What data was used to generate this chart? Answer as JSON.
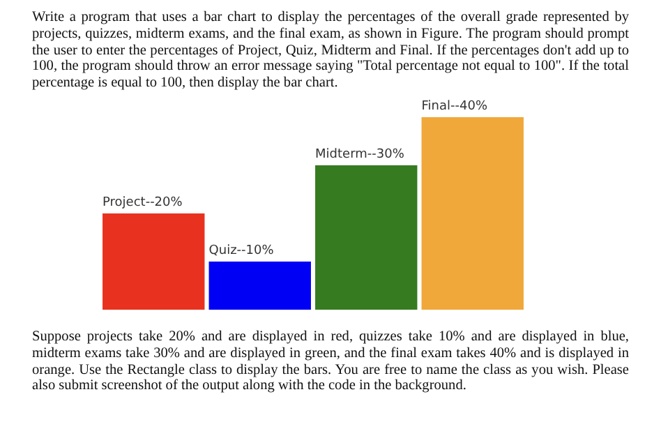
{
  "chart_data": {
    "type": "bar",
    "title": "Write a program that uses a bar chart to display the percentages of the overall grade represented by projects, quizzes, midterm exams, and the final exam, as shown in Figure. The program should prompt the user to enter the percentages of Project, Quiz, Midterm and Final. If the percentages don't add up to 100, the program should throw an error message saying \"Total percentage not equal to 100\". If the total percentage is equal to 100, then display the bar chart.",
    "annotations": [
      "Suppose projects take 20% and are displayed in red, quizzes take 10% and are displayed in blue, midterm exams take 30% and are displayed in green, and the final exam takes 40% and is displayed in orange. Use the Rectangle class to display the bars. You are free to name the class as you wish. Please also submit screenshot of the output along with the code in the background."
    ],
    "categories": [
      "Project--",
      "Quiz--",
      "Midterm--",
      "Final--"
    ],
    "values": [
      20,
      10,
      30,
      40
    ],
    "colors": [
      "#e8321f",
      "#0000f5",
      "#367b1f",
      "#f0a83a"
    ],
    "value_labels": [
      "20%",
      "10%",
      "30%",
      "40%"
    ],
    "tick_labels": false
  }
}
